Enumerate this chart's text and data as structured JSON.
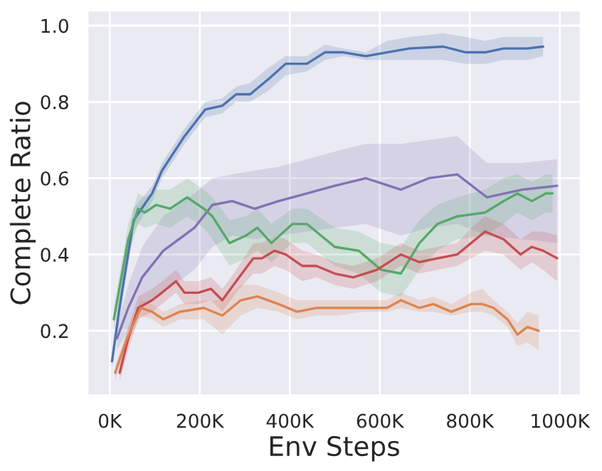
{
  "chart_data": {
    "type": "line",
    "xlabel": "Env Steps",
    "ylabel": "Complete Ratio",
    "xlim": [
      -50,
      1047
    ],
    "ylim": [
      0.03,
      1.04
    ],
    "xticks": [
      {
        "value": 0,
        "label": "0K"
      },
      {
        "value": 200,
        "label": "200K"
      },
      {
        "value": 400,
        "label": "400K"
      },
      {
        "value": 600,
        "label": "600K"
      },
      {
        "value": 800,
        "label": "800K"
      },
      {
        "value": 1000,
        "label": "1000K"
      }
    ],
    "yticks": [
      0.2,
      0.4,
      0.6,
      0.8,
      {
        "value": 1.0,
        "label": "1.0"
      }
    ],
    "grid": true,
    "marker": "none",
    "line_style": "solid",
    "series": [
      {
        "color": "#4c72b0",
        "x": [
          5,
          19,
          31,
          53,
          94,
          116,
          166,
          212,
          250,
          281,
          312,
          353,
          391,
          438,
          478,
          519,
          569,
          616,
          666,
          741,
          791,
          834,
          875,
          928,
          963
        ],
        "values": [
          0.12,
          0.24,
          0.33,
          0.49,
          0.56,
          0.62,
          0.71,
          0.78,
          0.79,
          0.82,
          0.82,
          0.86,
          0.9,
          0.9,
          0.93,
          0.93,
          0.92,
          0.93,
          0.94,
          0.945,
          0.93,
          0.93,
          0.94,
          0.94,
          0.945
        ],
        "lower": [
          0.1,
          0.21,
          0.3,
          0.46,
          0.54,
          0.6,
          0.69,
          0.76,
          0.77,
          0.8,
          0.8,
          0.83,
          0.87,
          0.88,
          0.91,
          0.92,
          0.91,
          0.91,
          0.91,
          0.91,
          0.9,
          0.9,
          0.91,
          0.91,
          0.92
        ],
        "upper": [
          0.14,
          0.27,
          0.36,
          0.52,
          0.58,
          0.64,
          0.73,
          0.8,
          0.81,
          0.84,
          0.85,
          0.89,
          0.92,
          0.92,
          0.95,
          0.94,
          0.93,
          0.96,
          0.97,
          0.98,
          0.97,
          0.96,
          0.97,
          0.97,
          0.97
        ]
      },
      {
        "color": "#8172b3",
        "x": [
          16,
          41,
          72,
          119,
          188,
          228,
          272,
          322,
          375,
          438,
          500,
          569,
          647,
          709,
          772,
          838,
          916,
          994
        ],
        "values": [
          0.18,
          0.26,
          0.34,
          0.41,
          0.47,
          0.53,
          0.54,
          0.52,
          0.54,
          0.56,
          0.58,
          0.6,
          0.57,
          0.6,
          0.61,
          0.55,
          0.57,
          0.58
        ],
        "lower": [
          0.15,
          0.2,
          0.26,
          0.3,
          0.36,
          0.42,
          0.45,
          0.44,
          0.45,
          0.46,
          0.47,
          0.48,
          0.45,
          0.47,
          0.48,
          0.45,
          0.44,
          0.43
        ],
        "upper": [
          0.21,
          0.32,
          0.42,
          0.5,
          0.56,
          0.6,
          0.61,
          0.62,
          0.63,
          0.65,
          0.67,
          0.69,
          0.69,
          0.7,
          0.71,
          0.64,
          0.64,
          0.65
        ]
      },
      {
        "color": "#55a868",
        "x": [
          9,
          41,
          63,
          78,
          103,
          134,
          172,
          209,
          228,
          266,
          303,
          328,
          359,
          406,
          438,
          500,
          553,
          603,
          647,
          688,
          728,
          772,
          834,
          875,
          906,
          938,
          969,
          984
        ],
        "values": [
          0.23,
          0.44,
          0.52,
          0.51,
          0.53,
          0.52,
          0.55,
          0.52,
          0.5,
          0.43,
          0.45,
          0.47,
          0.43,
          0.48,
          0.48,
          0.42,
          0.41,
          0.36,
          0.35,
          0.43,
          0.48,
          0.5,
          0.51,
          0.54,
          0.56,
          0.54,
          0.56,
          0.56
        ],
        "lower": [
          0.2,
          0.4,
          0.48,
          0.47,
          0.48,
          0.47,
          0.5,
          0.47,
          0.44,
          0.37,
          0.39,
          0.41,
          0.38,
          0.43,
          0.43,
          0.37,
          0.35,
          0.3,
          0.29,
          0.36,
          0.41,
          0.44,
          0.45,
          0.48,
          0.51,
          0.49,
          0.51,
          0.51
        ],
        "upper": [
          0.26,
          0.48,
          0.56,
          0.55,
          0.57,
          0.57,
          0.6,
          0.57,
          0.55,
          0.49,
          0.5,
          0.52,
          0.48,
          0.52,
          0.52,
          0.47,
          0.46,
          0.43,
          0.42,
          0.49,
          0.53,
          0.55,
          0.57,
          0.6,
          0.61,
          0.59,
          0.61,
          0.61
        ]
      },
      {
        "color": "#c44e52",
        "x": [
          22,
          41,
          63,
          94,
          116,
          147,
          166,
          197,
          225,
          250,
          281,
          319,
          338,
          366,
          391,
          428,
          459,
          500,
          541,
          594,
          647,
          688,
          728,
          772,
          803,
          834,
          875,
          913,
          938,
          963,
          994
        ],
        "values": [
          0.09,
          0.18,
          0.26,
          0.28,
          0.3,
          0.33,
          0.3,
          0.3,
          0.31,
          0.28,
          0.33,
          0.39,
          0.39,
          0.41,
          0.4,
          0.37,
          0.37,
          0.35,
          0.34,
          0.36,
          0.4,
          0.38,
          0.39,
          0.4,
          0.43,
          0.46,
          0.44,
          0.4,
          0.42,
          0.41,
          0.39
        ],
        "lower": [
          0.07,
          0.15,
          0.23,
          0.25,
          0.27,
          0.3,
          0.27,
          0.27,
          0.28,
          0.25,
          0.3,
          0.35,
          0.35,
          0.37,
          0.36,
          0.33,
          0.34,
          0.32,
          0.31,
          0.33,
          0.37,
          0.35,
          0.36,
          0.37,
          0.39,
          0.41,
          0.4,
          0.36,
          0.38,
          0.36,
          0.33
        ],
        "upper": [
          0.11,
          0.21,
          0.29,
          0.31,
          0.33,
          0.36,
          0.33,
          0.33,
          0.34,
          0.31,
          0.36,
          0.43,
          0.43,
          0.45,
          0.44,
          0.41,
          0.4,
          0.38,
          0.37,
          0.39,
          0.43,
          0.41,
          0.42,
          0.43,
          0.47,
          0.5,
          0.48,
          0.44,
          0.46,
          0.46,
          0.45
        ]
      },
      {
        "color": "#dd8452",
        "x": [
          12,
          38,
          69,
          94,
          119,
          156,
          209,
          250,
          291,
          328,
          375,
          416,
          459,
          509,
          562,
          616,
          647,
          688,
          719,
          759,
          803,
          828,
          853,
          884,
          906,
          928,
          953
        ],
        "values": [
          0.09,
          0.18,
          0.26,
          0.25,
          0.23,
          0.25,
          0.26,
          0.24,
          0.28,
          0.29,
          0.27,
          0.25,
          0.26,
          0.26,
          0.26,
          0.26,
          0.28,
          0.26,
          0.27,
          0.25,
          0.27,
          0.27,
          0.26,
          0.23,
          0.19,
          0.21,
          0.2
        ],
        "lower": [
          0.07,
          0.16,
          0.24,
          0.23,
          0.21,
          0.23,
          0.23,
          0.19,
          0.24,
          0.26,
          0.25,
          0.23,
          0.24,
          0.24,
          0.25,
          0.25,
          0.26,
          0.25,
          0.25,
          0.24,
          0.25,
          0.25,
          0.24,
          0.21,
          0.16,
          0.17,
          0.15
        ],
        "upper": [
          0.11,
          0.2,
          0.28,
          0.27,
          0.25,
          0.27,
          0.28,
          0.28,
          0.32,
          0.32,
          0.3,
          0.28,
          0.28,
          0.28,
          0.28,
          0.28,
          0.3,
          0.28,
          0.29,
          0.27,
          0.3,
          0.31,
          0.28,
          0.25,
          0.22,
          0.25,
          0.24
        ]
      }
    ]
  }
}
